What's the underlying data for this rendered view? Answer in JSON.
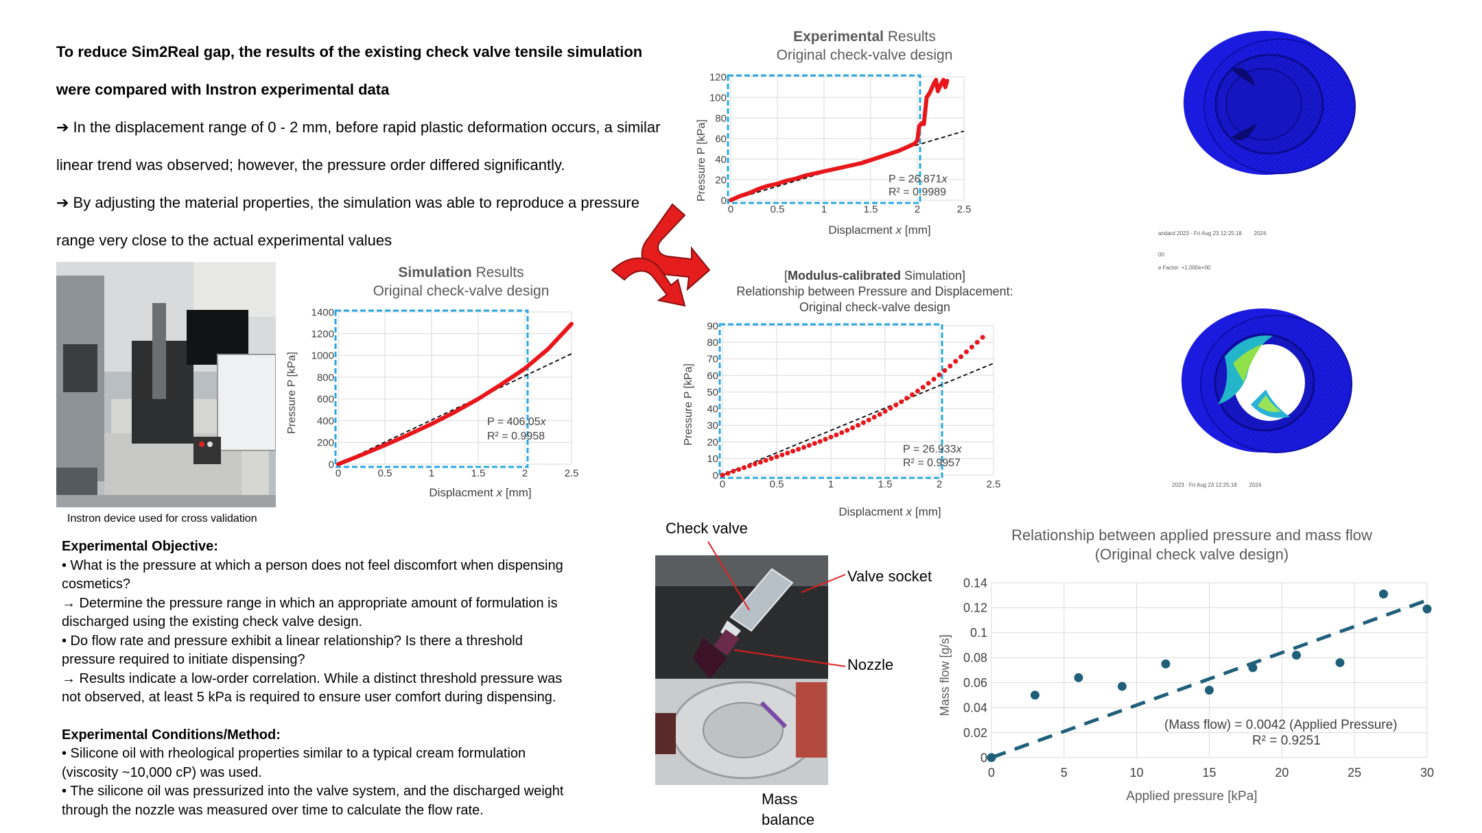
{
  "intro": {
    "line1": "To reduce Sim2Real gap, the results of the existing check valve tensile simulation",
    "line2": "were compared with Instron experimental data",
    "line3": "➔ In the displacement range of 0 - 2 mm, before rapid plastic deformation occurs, a similar",
    "line4": "linear trend was observed; however, the pressure order differed significantly.",
    "line5": "➔ By adjusting the material properties, the simulation was able to reproduce a pressure",
    "line6": "range very close to the actual experimental values"
  },
  "instron_photo": {
    "caption": "Instron device used for cross validation"
  },
  "objective": {
    "heading": "Experimental Objective:",
    "lines": [
      "• What is the pressure at which a person does not feel discomfort when dispensing",
      "cosmetics?",
      "→ Determine the pressure range in which an appropriate amount of formulation is",
      "discharged using the existing check valve design.",
      "• Do flow rate and pressure exhibit a linear relationship? Is there a threshold",
      "pressure required to initiate dispensing?",
      "→ Results indicate a low-order correlation. While a distinct threshold pressure was",
      "not observed, at least 5 kPa is required to ensure user comfort during dispensing."
    ],
    "heading2": "Experimental Conditions/Method:",
    "lines2": [
      "• Silicone oil with rheological properties similar to a typical cream formulation",
      "(viscosity ~10,000 cP) was used.",
      "• The silicone oil was pressurized into the valve system, and the discharged weight",
      "through the nozzle was measured over time to calculate the flow rate."
    ]
  },
  "valve_photo": {
    "labels": {
      "check_valve": "Check valve",
      "valve_socket": "Valve socket",
      "nozzle": "Nozzle",
      "mass_balance_1": "Mass",
      "mass_balance_2": "balance"
    }
  },
  "fem": {
    "top_line1": "andard 2023 · Fri Aug 23 12:25:18",
    "top_line2": "2024",
    "top_line3": "00",
    "top_line4": "e Factor: +1.000e+00",
    "bottom_line": "2023 · Fri Aug 23 12:25:18",
    "bottom_line2": "2024"
  },
  "colors": {
    "fit_red": "#e8161b",
    "dashed_fit": "#000000",
    "highlight_box": "#29a8e0",
    "massflow_teal": "#1f5f7a",
    "fem_blue": "#1b1be0"
  },
  "chart_data": [
    {
      "id": "experimental",
      "type": "line",
      "title_bold": "Experimental",
      "title_rest": " Results",
      "subtitle": "Original check-valve design",
      "xlabel_main": "Displacment ",
      "xlabel_var": "x",
      "xlabel_unit": " [mm]",
      "ylabel": "Pressure P [kPa]",
      "xlim": [
        0,
        2.5
      ],
      "ylim": [
        0,
        120
      ],
      "xticks": [
        0,
        0.5,
        1,
        1.5,
        2,
        2.5
      ],
      "xticklabels": [
        "0",
        "0.5",
        "1",
        "1.5",
        "2",
        "2.5"
      ],
      "yticks": [
        0,
        20,
        40,
        60,
        80,
        100,
        120
      ],
      "yticklabels": [
        "0",
        "20",
        "40",
        "60",
        "80",
        "100",
        "120"
      ],
      "eq_main": "P = 26.871",
      "eq_var": "x",
      "r2": "R² = 0.9989",
      "fit_slope": 26.871,
      "highlight": [
        0,
        2
      ],
      "series": [
        {
          "x": [
            0,
            0.05,
            0.1,
            0.2,
            0.3,
            0.4,
            0.5,
            0.6,
            0.7,
            0.8,
            0.9,
            1.0,
            1.1,
            1.2,
            1.3,
            1.4,
            1.5,
            1.6,
            1.7,
            1.8,
            1.9,
            1.97,
            2.0,
            2.02,
            2.05,
            2.07,
            2.1,
            2.13,
            2.15,
            2.18,
            2.2,
            2.22,
            2.25,
            2.28,
            2.3,
            2.32
          ],
          "y": [
            0,
            2,
            4,
            7,
            11,
            14,
            16,
            19,
            21,
            24,
            26,
            28,
            30,
            32,
            34,
            36,
            39,
            42,
            45,
            48,
            52,
            55,
            58,
            72,
            75,
            74,
            100,
            104,
            108,
            114,
            117,
            106,
            112,
            117,
            110,
            116
          ]
        }
      ]
    },
    {
      "id": "simulation",
      "type": "line",
      "title_bold": "Simulation",
      "title_rest": " Results",
      "subtitle": "Original check-valve design",
      "xlabel_main": "Displacment ",
      "xlabel_var": "x",
      "xlabel_unit": " [mm]",
      "ylabel": "Pressure P [kPa]",
      "xlim": [
        0,
        2.5
      ],
      "ylim": [
        0,
        1400
      ],
      "xticks": [
        0,
        0.5,
        1,
        1.5,
        2,
        2.5
      ],
      "xticklabels": [
        "0",
        "0.5",
        "1",
        "1.5",
        "2",
        "2.5"
      ],
      "yticks": [
        0,
        200,
        400,
        600,
        800,
        1000,
        1200,
        1400
      ],
      "yticklabels": [
        "0",
        "200",
        "400",
        "600",
        "800",
        "1000",
        "1200",
        "1400"
      ],
      "eq_main": "P = 406.05",
      "eq_var": "x",
      "r2": "R² = 0.9958",
      "fit_slope": 406.05,
      "highlight": [
        0,
        2
      ],
      "series": [
        {
          "x": [
            0,
            0.25,
            0.5,
            0.75,
            1.0,
            1.25,
            1.5,
            1.75,
            2.0,
            2.25,
            2.5
          ],
          "y": [
            0,
            85,
            175,
            270,
            370,
            480,
            600,
            735,
            880,
            1060,
            1290
          ]
        }
      ]
    },
    {
      "id": "calibrated",
      "type": "scatter",
      "title_bracket_open": "[",
      "title_bold": "Modulus-calibrated",
      "title_rest": " Simulation]",
      "subtitle": "Relationship between Pressure and Displacement:",
      "subtitle2": "Original check-valve design",
      "xlabel_main": "Displacment ",
      "xlabel_var": "x",
      "xlabel_unit": " [mm]",
      "ylabel": "Pressure P [kPa]",
      "xlim": [
        0,
        2.5
      ],
      "ylim": [
        0,
        90
      ],
      "xticks": [
        0,
        0.5,
        1,
        1.5,
        2,
        2.5
      ],
      "xticklabels": [
        "0",
        "0.5",
        "1",
        "1.5",
        "2",
        "2.5"
      ],
      "yticks": [
        0,
        10,
        20,
        30,
        40,
        50,
        60,
        70,
        80,
        90
      ],
      "yticklabels": [
        "0",
        "10",
        "20",
        "30",
        "40",
        "50",
        "60",
        "70",
        "80",
        "90"
      ],
      "eq_main": "P = 26.933",
      "eq_var": "x",
      "r2": "R² = 0.9957",
      "fit_slope": 26.933,
      "highlight": [
        0,
        2
      ],
      "series": [
        {
          "x": [
            0,
            0.05,
            0.1,
            0.15,
            0.2,
            0.25,
            0.3,
            0.35,
            0.4,
            0.45,
            0.5,
            0.55,
            0.6,
            0.65,
            0.7,
            0.75,
            0.8,
            0.85,
            0.9,
            0.95,
            1.0,
            1.05,
            1.1,
            1.15,
            1.2,
            1.25,
            1.3,
            1.35,
            1.4,
            1.45,
            1.5,
            1.55,
            1.6,
            1.65,
            1.7,
            1.75,
            1.8,
            1.85,
            1.9,
            1.95,
            2.0,
            2.05,
            2.1,
            2.15,
            2.2,
            2.25,
            2.3,
            2.35,
            2.4
          ],
          "y": [
            0,
            1.1,
            2.3,
            3.4,
            4.5,
            5.6,
            6.7,
            7.8,
            8.9,
            10.0,
            11.1,
            12.2,
            13.3,
            14.4,
            15.6,
            16.7,
            17.9,
            19.1,
            20.3,
            21.6,
            22.9,
            24.2,
            25.6,
            27.0,
            28.5,
            30.0,
            31.6,
            33.2,
            34.9,
            36.6,
            38.4,
            40.3,
            42.2,
            44.2,
            46.3,
            48.4,
            50.6,
            52.9,
            55.3,
            57.8,
            60.4,
            63.0,
            65.7,
            68.5,
            71.3,
            74.2,
            77.1,
            80.0,
            83.0
          ]
        }
      ]
    },
    {
      "id": "massflow",
      "type": "scatter",
      "title": "Relationship between applied pressure and mass flow",
      "subtitle": "(Original check valve design)",
      "xlabel": "Applied pressure [kPa]",
      "ylabel": "Mass flow [g/s]",
      "xlim": [
        0,
        30
      ],
      "ylim": [
        0,
        0.14
      ],
      "xticks": [
        0,
        5,
        10,
        15,
        20,
        25,
        30
      ],
      "xticklabels": [
        "0",
        "5",
        "10",
        "15",
        "20",
        "25",
        "30"
      ],
      "yticks": [
        0,
        0.02,
        0.04,
        0.06,
        0.08,
        0.1,
        0.12,
        0.14
      ],
      "yticklabels": [
        "0",
        "0.02",
        "0.04",
        "0.06",
        "0.08",
        "0.1",
        "0.12",
        "0.14"
      ],
      "eq": "(Mass flow) = 0.0042 (Applied Pressure)",
      "r2": "R² = 0.9251",
      "fit_slope": 0.0042,
      "series": [
        {
          "x": [
            0,
            3,
            6,
            9,
            12,
            15,
            18,
            21,
            24,
            27,
            30
          ],
          "y": [
            0,
            0.05,
            0.064,
            0.057,
            0.075,
            0.054,
            0.072,
            0.082,
            0.076,
            0.131,
            0.119
          ]
        }
      ]
    }
  ]
}
